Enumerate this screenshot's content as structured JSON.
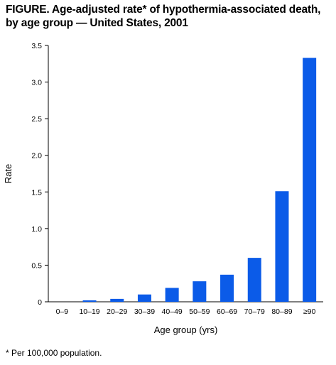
{
  "title": {
    "line1": "FIGURE. Age-adjusted rate* of hypothermia-associated death,",
    "line2": "by age group — United States, 2001"
  },
  "footnote": "* Per 100,000 population.",
  "chart_data": {
    "type": "bar",
    "title": "Age-adjusted rate* of hypothermia-associated death, by age group — United States, 2001",
    "xlabel": "Age group (yrs)",
    "ylabel": "Rate",
    "categories": [
      "0–9",
      "10–19",
      "20–29",
      "30–39",
      "40–49",
      "50–59",
      "60–69",
      "70–79",
      "80–89",
      "≥90"
    ],
    "values": [
      0.0,
      0.02,
      0.04,
      0.1,
      0.19,
      0.28,
      0.37,
      0.6,
      1.51,
      3.33
    ],
    "ylim": [
      0,
      3.5
    ],
    "yticks": [
      "0",
      "0.5",
      "1.0",
      "1.5",
      "2.0",
      "2.5",
      "3.0",
      "3.5"
    ],
    "ytick_values": [
      0,
      0.5,
      1.0,
      1.5,
      2.0,
      2.5,
      3.0,
      3.5
    ],
    "grid": false,
    "bar_color": "#0b5be8"
  }
}
